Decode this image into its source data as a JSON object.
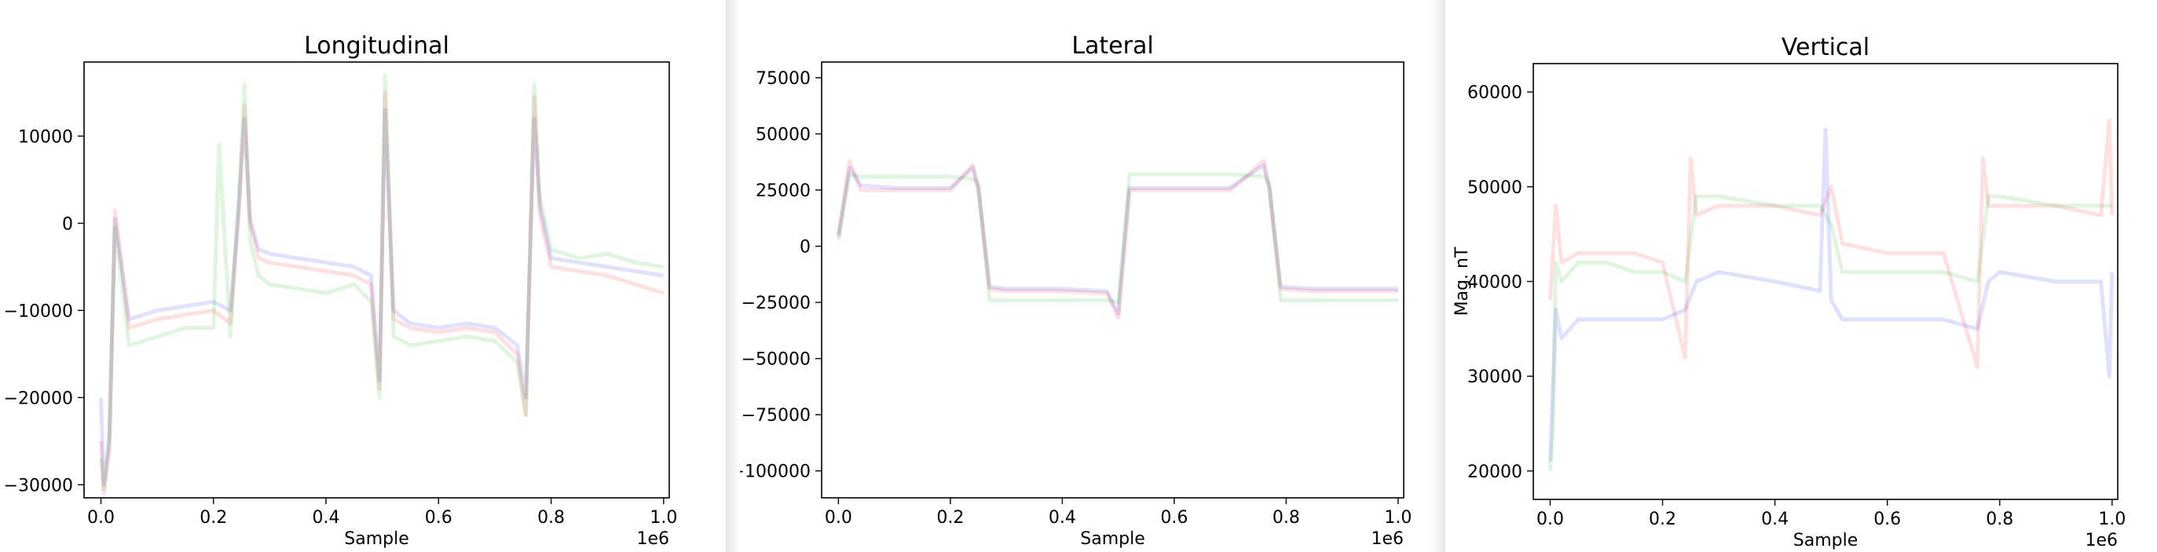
{
  "chart_data": [
    {
      "type": "line",
      "title": "Longitudinal",
      "xlabel": "Sample",
      "ylabel": "",
      "x_offset_label": "1e6",
      "xlim": [
        -0.03,
        1.01
      ],
      "ylim": [
        -31500,
        18500
      ],
      "xticks": [
        0.0,
        0.2,
        0.4,
        0.6,
        0.8,
        1.0
      ],
      "xtick_labels": [
        "0.0",
        "0.2",
        "0.4",
        "0.6",
        "0.8",
        "1.0"
      ],
      "yticks": [
        10000,
        0,
        -10000,
        -20000,
        -30000
      ],
      "ytick_labels": [
        "10000",
        "0",
        "−10000",
        "−20000",
        "−30000"
      ],
      "series": [
        {
          "color": "#0000ff",
          "opacity": 0.12,
          "x": [
            0.0,
            0.005,
            0.015,
            0.025,
            0.05,
            0.1,
            0.15,
            0.2,
            0.23,
            0.245,
            0.255,
            0.265,
            0.28,
            0.3,
            0.35,
            0.4,
            0.45,
            0.48,
            0.495,
            0.505,
            0.52,
            0.55,
            0.6,
            0.65,
            0.7,
            0.74,
            0.755,
            0.77,
            0.78,
            0.8,
            0.85,
            0.9,
            0.95,
            1.0
          ],
          "y": [
            -20000,
            -30000,
            -25000,
            500,
            -11000,
            -10000,
            -9500,
            -9000,
            -10000,
            2000,
            12000,
            500,
            -3000,
            -3500,
            -4000,
            -4500,
            -5000,
            -6000,
            -18000,
            13000,
            -10000,
            -11500,
            -12000,
            -11500,
            -12000,
            -14000,
            -20000,
            12000,
            2000,
            -4000,
            -4500,
            -5000,
            -5500,
            -6000
          ]
        },
        {
          "color": "#ff0000",
          "opacity": 0.12,
          "x": [
            0.0,
            0.005,
            0.015,
            0.025,
            0.05,
            0.1,
            0.15,
            0.2,
            0.23,
            0.245,
            0.255,
            0.265,
            0.28,
            0.3,
            0.35,
            0.4,
            0.45,
            0.48,
            0.495,
            0.505,
            0.52,
            0.55,
            0.6,
            0.65,
            0.7,
            0.74,
            0.755,
            0.77,
            0.78,
            0.8,
            0.85,
            0.9,
            0.95,
            1.0
          ],
          "y": [
            -25000,
            -31000,
            -26000,
            1500,
            -12000,
            -11000,
            -10500,
            -10000,
            -11500,
            1000,
            13500,
            0,
            -4000,
            -4500,
            -5000,
            -5500,
            -6000,
            -7000,
            -19000,
            15000,
            -11000,
            -12000,
            -12500,
            -12000,
            -12500,
            -15000,
            -22000,
            14500,
            1000,
            -5000,
            -5500,
            -6000,
            -7000,
            -8000
          ]
        },
        {
          "color": "#00aa00",
          "opacity": 0.12,
          "x": [
            0.0,
            0.005,
            0.015,
            0.025,
            0.05,
            0.1,
            0.15,
            0.2,
            0.21,
            0.23,
            0.245,
            0.255,
            0.265,
            0.28,
            0.3,
            0.35,
            0.4,
            0.45,
            0.48,
            0.495,
            0.505,
            0.52,
            0.55,
            0.6,
            0.65,
            0.7,
            0.74,
            0.755,
            0.77,
            0.78,
            0.8,
            0.85,
            0.9,
            0.95,
            1.0
          ],
          "y": [
            -27000,
            -30500,
            -24000,
            -500,
            -14000,
            -13000,
            -12000,
            -12000,
            9000,
            -13000,
            3000,
            16000,
            -2000,
            -6000,
            -7000,
            -7500,
            -8000,
            -7000,
            -9000,
            -20000,
            17000,
            -13000,
            -14000,
            -13500,
            -13000,
            -13500,
            -16000,
            -22000,
            16000,
            3000,
            -3000,
            -4000,
            -3500,
            -4500,
            -5000
          ]
        }
      ]
    },
    {
      "type": "line",
      "title": "Lateral",
      "xlabel": "Sample",
      "ylabel": "",
      "x_offset_label": "1e6",
      "xlim": [
        -0.03,
        1.01
      ],
      "ylim": [
        -112000,
        82000
      ],
      "xticks": [
        0.0,
        0.2,
        0.4,
        0.6,
        0.8,
        1.0
      ],
      "xtick_labels": [
        "0.0",
        "0.2",
        "0.4",
        "0.6",
        "0.8",
        "1.0"
      ],
      "yticks": [
        75000,
        50000,
        25000,
        0,
        -25000,
        -50000,
        -75000,
        -100000
      ],
      "ytick_labels": [
        "75000",
        "50000",
        "25000",
        "0",
        "−25000",
        "−50000",
        "−75000",
        "−100000"
      ],
      "series": [
        {
          "color": "#0000ff",
          "opacity": 0.12,
          "x": [
            0.0,
            0.02,
            0.04,
            0.1,
            0.2,
            0.24,
            0.25,
            0.27,
            0.3,
            0.4,
            0.48,
            0.5,
            0.52,
            0.6,
            0.7,
            0.76,
            0.77,
            0.79,
            0.85,
            0.9,
            1.0
          ],
          "y": [
            5000,
            35000,
            27000,
            26000,
            26000,
            35000,
            26000,
            -18000,
            -19000,
            -19000,
            -20000,
            -30000,
            26000,
            26000,
            26000,
            36000,
            26000,
            -18000,
            -19000,
            -19000,
            -19000
          ]
        },
        {
          "color": "#ff0000",
          "opacity": 0.12,
          "x": [
            0.0,
            0.02,
            0.04,
            0.1,
            0.2,
            0.24,
            0.25,
            0.27,
            0.3,
            0.4,
            0.48,
            0.5,
            0.52,
            0.6,
            0.7,
            0.76,
            0.77,
            0.79,
            0.85,
            0.9,
            1.0
          ],
          "y": [
            4000,
            38000,
            25000,
            25000,
            25000,
            36000,
            25000,
            -19000,
            -20000,
            -20000,
            -21000,
            -32000,
            25000,
            25000,
            25000,
            38000,
            25000,
            -19000,
            -20000,
            -20000,
            -20000
          ]
        },
        {
          "color": "#00aa00",
          "opacity": 0.12,
          "x": [
            0.0,
            0.02,
            0.04,
            0.1,
            0.2,
            0.24,
            0.25,
            0.27,
            0.3,
            0.4,
            0.48,
            0.5,
            0.52,
            0.6,
            0.7,
            0.76,
            0.77,
            0.79,
            0.85,
            0.9,
            1.0
          ],
          "y": [
            3000,
            32000,
            31000,
            31000,
            31000,
            30000,
            28000,
            -24000,
            -24000,
            -24000,
            -24000,
            -25000,
            32000,
            32000,
            32000,
            31000,
            28000,
            -24000,
            -24000,
            -24000,
            -24000
          ]
        }
      ]
    },
    {
      "type": "line",
      "title": "Vertical",
      "xlabel": "Sample",
      "ylabel": "Mag. nT",
      "x_offset_label": "1e6",
      "xlim": [
        -0.03,
        1.01
      ],
      "ylim": [
        17000,
        63000
      ],
      "xticks": [
        0.0,
        0.2,
        0.4,
        0.6,
        0.8,
        1.0
      ],
      "xtick_labels": [
        "0.0",
        "0.2",
        "0.4",
        "0.6",
        "0.8",
        "1.0"
      ],
      "yticks": [
        60000,
        50000,
        40000,
        30000,
        20000
      ],
      "ytick_labels": [
        "60000",
        "50000",
        "40000",
        "30000",
        "20000"
      ],
      "series": [
        {
          "color": "#0000ff",
          "opacity": 0.12,
          "x": [
            0.0,
            0.01,
            0.02,
            0.05,
            0.1,
            0.15,
            0.2,
            0.24,
            0.26,
            0.3,
            0.4,
            0.48,
            0.49,
            0.5,
            0.52,
            0.6,
            0.7,
            0.76,
            0.78,
            0.8,
            0.9,
            0.98,
            0.995,
            1.0
          ],
          "y": [
            21000,
            37000,
            34000,
            36000,
            36000,
            36000,
            36000,
            37000,
            40000,
            41000,
            40000,
            39000,
            56000,
            38000,
            36000,
            36000,
            36000,
            35000,
            40000,
            41000,
            40000,
            40000,
            30000,
            41000
          ]
        },
        {
          "color": "#ff0000",
          "opacity": 0.12,
          "x": [
            0.0,
            0.01,
            0.02,
            0.05,
            0.1,
            0.15,
            0.2,
            0.24,
            0.25,
            0.26,
            0.3,
            0.4,
            0.48,
            0.5,
            0.52,
            0.6,
            0.7,
            0.76,
            0.77,
            0.78,
            0.8,
            0.9,
            0.98,
            0.995,
            1.0
          ],
          "y": [
            38000,
            48000,
            42000,
            43000,
            43000,
            43000,
            42000,
            32000,
            53000,
            47000,
            48000,
            48000,
            47000,
            50000,
            44000,
            43000,
            43000,
            31000,
            53000,
            48000,
            48000,
            48000,
            47000,
            57000,
            47000
          ]
        },
        {
          "color": "#00aa00",
          "opacity": 0.12,
          "x": [
            0.0,
            0.005,
            0.01,
            0.02,
            0.05,
            0.1,
            0.15,
            0.2,
            0.24,
            0.26,
            0.3,
            0.4,
            0.48,
            0.5,
            0.52,
            0.6,
            0.7,
            0.76,
            0.78,
            0.8,
            0.9,
            0.98,
            1.0
          ],
          "y": [
            20000,
            24000,
            42000,
            40000,
            42000,
            42000,
            41000,
            41000,
            40000,
            49000,
            49000,
            48000,
            48000,
            46000,
            41000,
            41000,
            41000,
            40000,
            49000,
            49000,
            48000,
            48000,
            48000
          ]
        }
      ]
    }
  ]
}
